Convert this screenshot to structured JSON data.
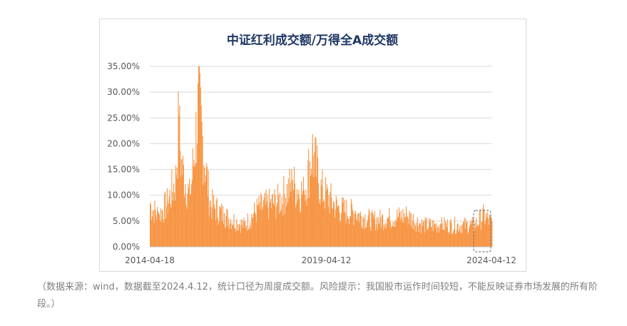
{
  "chart_data": {
    "type": "area",
    "title": "中证红利成交额/万得全A成交额",
    "y_tick_labels": [
      "0.00%",
      "5.00%",
      "10.00%",
      "15.00%",
      "20.00%",
      "25.00%",
      "30.00%",
      "35.00%"
    ],
    "x_tick_labels": [
      "2014-04-18",
      "2019-04-12",
      "2024-04-12"
    ],
    "ylim": [
      0,
      35
    ],
    "grid": true,
    "color": "#f79646",
    "series": [
      {
        "x": [
          "2014-04",
          "2014-07",
          "2014-10",
          "2015-01",
          "2015-02",
          "2015-03",
          "2015-06",
          "2015-09",
          "2016-01",
          "2016-06",
          "2017-01",
          "2017-06",
          "2018-01",
          "2018-06",
          "2018-10",
          "2019-01",
          "2019-04",
          "2019-10",
          "2020-04",
          "2020-10",
          "2021-04",
          "2021-10",
          "2022-04",
          "2022-10",
          "2023-04",
          "2023-10",
          "2024-01",
          "2024-04"
        ],
        "values": [
          8.5,
          6.5,
          9.0,
          14.0,
          25.5,
          17.0,
          10.0,
          29.5,
          9.0,
          6.5,
          4.5,
          8.0,
          9.5,
          13.0,
          11.0,
          20.0,
          12.0,
          8.0,
          7.0,
          5.5,
          6.0,
          6.5,
          4.5,
          4.5,
          4.5,
          4.5,
          6.5,
          5.0
        ]
      }
    ]
  },
  "caption": "（数据来源：wind，数据截至2024.4.12，统计口径为周度成交额。风险提示：我国股市运作时间较短，不能反映证券市场发展的所有阶段。）"
}
